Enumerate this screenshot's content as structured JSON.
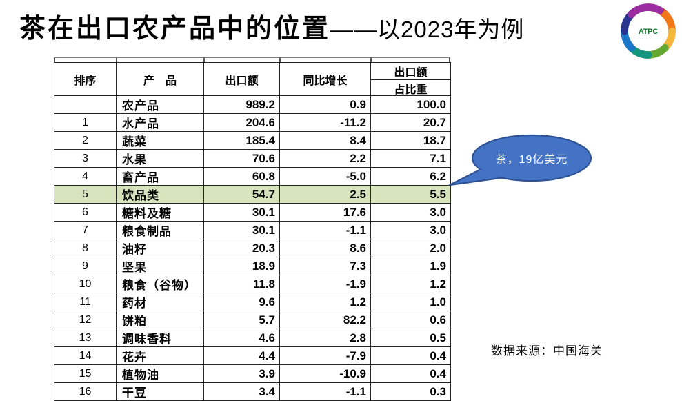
{
  "slide": {
    "title_main": "茶在出口农产品中的位置",
    "title_sub": "——以2023年为例",
    "logo_text": "ATPC",
    "source_note": "数据来源：中国海关"
  },
  "callout": {
    "text": "茶，19亿美元",
    "fill": "#4472C4",
    "border": "#2E5395",
    "text_color": "#ffffff"
  },
  "table": {
    "headers": {
      "rank": "排序",
      "product": "产　品",
      "export": "出口额",
      "yoy": "同比增长",
      "share_top": "出口额",
      "share_bottom": "占比重"
    },
    "highlight_color": "#D6E3BC",
    "highlight_row_index": 5,
    "rows": [
      {
        "rank": "",
        "product": "农产品",
        "export": "989.2",
        "yoy": "0.9",
        "share": "100.0"
      },
      {
        "rank": "1",
        "product": "水产品",
        "export": "204.6",
        "yoy": "-11.2",
        "share": "20.7"
      },
      {
        "rank": "2",
        "product": "蔬菜",
        "export": "185.4",
        "yoy": "8.4",
        "share": "18.7"
      },
      {
        "rank": "3",
        "product": "水果",
        "export": "70.6",
        "yoy": "2.2",
        "share": "7.1"
      },
      {
        "rank": "4",
        "product": "畜产品",
        "export": "60.8",
        "yoy": "-5.0",
        "share": "6.2"
      },
      {
        "rank": "5",
        "product": "饮品类",
        "export": "54.7",
        "yoy": "2.5",
        "share": "5.5"
      },
      {
        "rank": "6",
        "product": "糖料及糖",
        "export": "30.1",
        "yoy": "17.6",
        "share": "3.0"
      },
      {
        "rank": "7",
        "product": "粮食制品",
        "export": "30.1",
        "yoy": "-1.1",
        "share": "3.0"
      },
      {
        "rank": "8",
        "product": "油籽",
        "export": "20.3",
        "yoy": "8.6",
        "share": "2.0"
      },
      {
        "rank": "9",
        "product": "坚果",
        "export": "18.9",
        "yoy": "7.3",
        "share": "1.9"
      },
      {
        "rank": "10",
        "product": "粮食（谷物）",
        "export": "11.8",
        "yoy": "-1.9",
        "share": "1.2"
      },
      {
        "rank": "11",
        "product": "药材",
        "export": "9.6",
        "yoy": "1.2",
        "share": "1.0"
      },
      {
        "rank": "12",
        "product": "饼粕",
        "export": "5.7",
        "yoy": "82.2",
        "share": "0.6"
      },
      {
        "rank": "13",
        "product": "调味香料",
        "export": "4.6",
        "yoy": "2.8",
        "share": "0.5"
      },
      {
        "rank": "14",
        "product": "花卉",
        "export": "4.4",
        "yoy": "-7.9",
        "share": "0.4"
      },
      {
        "rank": "15",
        "product": "植物油",
        "export": "3.9",
        "yoy": "-10.9",
        "share": "0.4"
      },
      {
        "rank": "16",
        "product": "干豆",
        "export": "3.4",
        "yoy": "-1.1",
        "share": "0.3"
      }
    ]
  }
}
